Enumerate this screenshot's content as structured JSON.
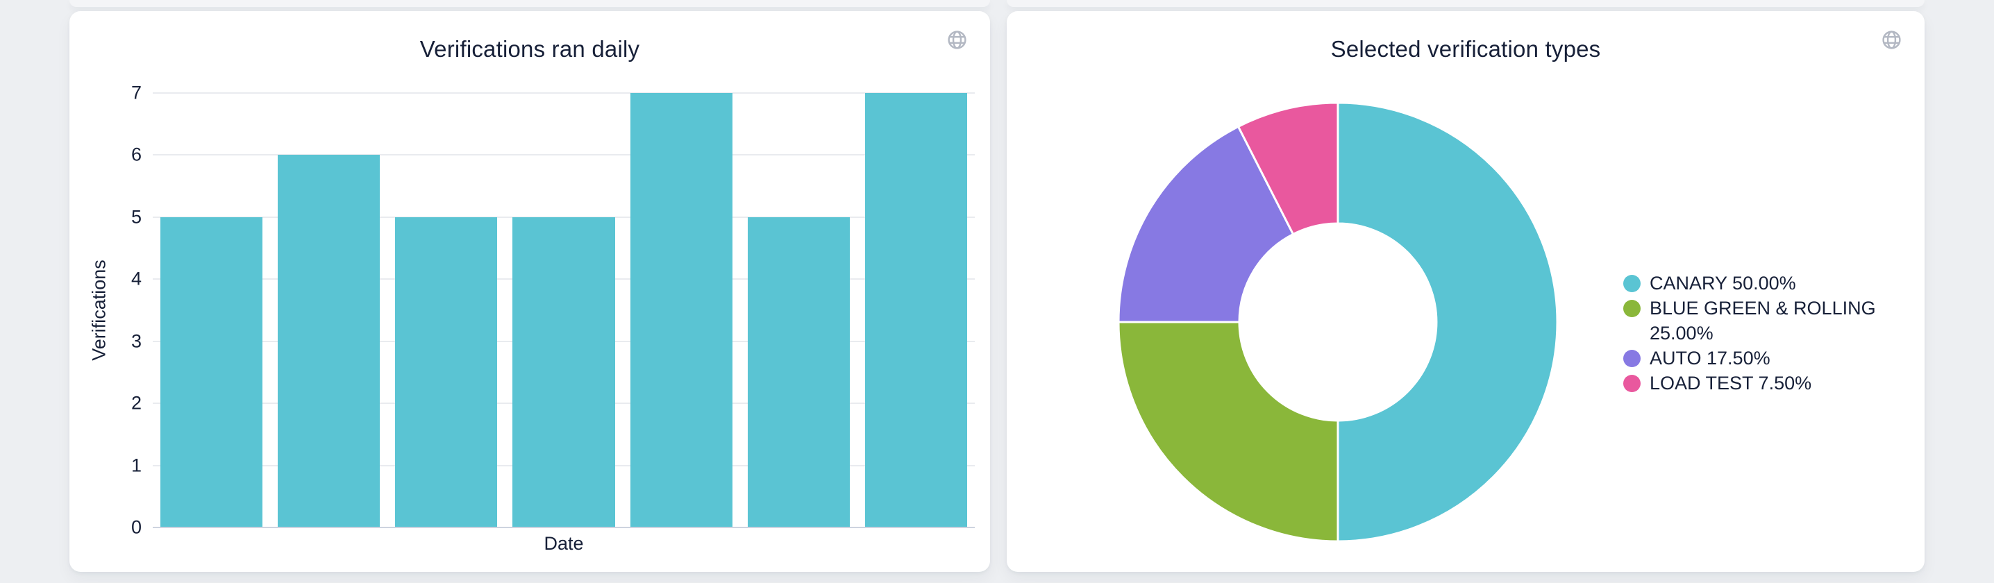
{
  "cards": [
    {
      "title": "Verifications ran daily",
      "icon": "globe-icon"
    },
    {
      "title": "Selected verification types",
      "icon": "globe-icon"
    }
  ],
  "chart_data": [
    {
      "type": "bar",
      "title": "Verifications ran daily",
      "xlabel": "Date",
      "ylabel": "Verifications",
      "values": [
        5,
        6,
        5,
        5,
        7,
        5,
        7
      ],
      "ylim": [
        0,
        7
      ],
      "yticks": [
        0,
        1,
        2,
        3,
        4,
        5,
        6,
        7
      ],
      "x_tick_labels": [],
      "bar_color": "#5ac4d3",
      "grid": true,
      "legend_position": "none"
    },
    {
      "type": "pie",
      "title": "Selected verification types",
      "donut": true,
      "hole_ratio": 0.45,
      "start_angle": "top",
      "direction": "clockwise",
      "legend_position": "right",
      "slices": [
        {
          "name": "CANARY",
          "value": 50.0,
          "legend": "CANARY 50.00%",
          "color": "#5ac4d3"
        },
        {
          "name": "BLUE GREEN & ROLLING",
          "value": 25.0,
          "legend": "BLUE GREEN & ROLLING 25.00%",
          "color": "#8ab73a"
        },
        {
          "name": "AUTO",
          "value": 17.5,
          "legend": "AUTO 17.50%",
          "color": "#8779e3"
        },
        {
          "name": "LOAD TEST",
          "value": 7.5,
          "legend": "LOAD TEST 7.50%",
          "color": "#e9589e"
        }
      ]
    }
  ],
  "colors": {
    "background": "#edeff2",
    "card": "#ffffff",
    "text": "#172038",
    "gridline": "#e9ebef",
    "zero_line": "#cdd3df",
    "icon": "#b3b8c3"
  }
}
